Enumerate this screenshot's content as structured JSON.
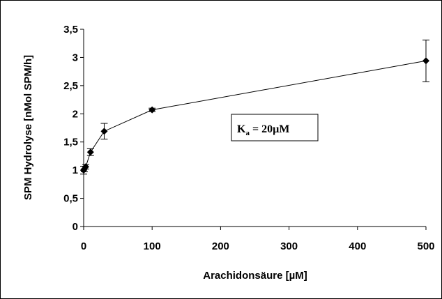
{
  "chart_data": {
    "type": "line",
    "xlabel": "Arachidonsäure [µM]",
    "ylabel": "SPM Hydrolyse [nMol SPM/h]",
    "xlim": [
      0,
      500
    ],
    "ylim": [
      0,
      3.5
    ],
    "xticks": [
      "0",
      "100",
      "200",
      "300",
      "400",
      "500"
    ],
    "yticks": [
      "0",
      "0,5",
      "1",
      "1,5",
      "2",
      "2,5",
      "3",
      "3,5"
    ],
    "grid": false,
    "legend": "none",
    "series": [
      {
        "x": [
          0,
          1,
          3,
          10,
          30,
          100,
          500
        ],
        "y": [
          1.0,
          1.02,
          1.06,
          1.32,
          1.69,
          2.07,
          2.94
        ],
        "error": [
          0.07,
          0.05,
          0.04,
          0.06,
          0.14,
          0.03,
          0.37
        ],
        "color": "#000000",
        "marker": "diamond"
      }
    ],
    "annotation": {
      "text_main": "K",
      "text_sub": "a",
      "text_rest": " = 20µM"
    }
  }
}
